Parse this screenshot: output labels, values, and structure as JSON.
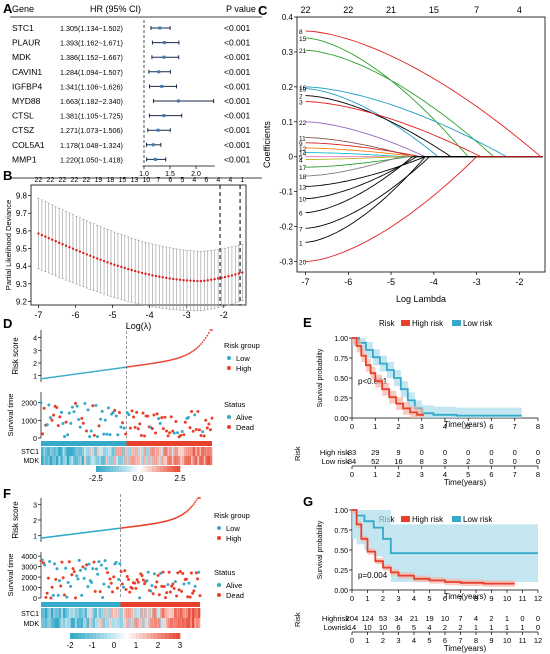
{
  "panels": {
    "A": "A",
    "B": "B",
    "C": "C",
    "D": "D",
    "E": "E",
    "F": "F",
    "G": "G"
  },
  "chart_data": [
    {
      "id": "A",
      "type": "forest",
      "headers": {
        "gene": "Gene",
        "hr": "HR (95% CI)",
        "p": "P value"
      },
      "genes": [
        "STC1",
        "PLAUR",
        "MDK",
        "CAVIN1",
        "IGFBP4",
        "MYD88",
        "CTSL",
        "CTSZ",
        "COL5A1",
        "MMP1"
      ],
      "hr_text": [
        "1.305(1.134~1.502)",
        "1.393(1.162~1.671)",
        "1.386(1.152~1.667)",
        "1.284(1.094~1.507)",
        "1.341(1.106~1.626)",
        "1.663(1.182~2.340)",
        "1.381(1.105~1.725)",
        "1.271(1.073~1.506)",
        "1.178(1.048~1.324)",
        "1.220(1.050~1.418)"
      ],
      "hr": [
        1.305,
        1.393,
        1.386,
        1.284,
        1.341,
        1.663,
        1.381,
        1.271,
        1.178,
        1.22
      ],
      "lo": [
        1.134,
        1.162,
        1.152,
        1.094,
        1.106,
        1.182,
        1.105,
        1.073,
        1.048,
        1.05
      ],
      "hi": [
        1.502,
        1.671,
        1.667,
        1.507,
        1.626,
        2.34,
        1.725,
        1.506,
        1.324,
        1.418
      ],
      "p": [
        "<0.001",
        "<0.001",
        "<0.001",
        "<0.001",
        "<0.001",
        "<0.001",
        "<0.001",
        "<0.001",
        "<0.001",
        "<0.001"
      ],
      "xticks": [
        "1.0",
        "1.5",
        "2.0"
      ],
      "ref_line": 1.0
    },
    {
      "id": "B",
      "type": "line",
      "ylabel": "Partial Likelihood Deviance",
      "xlabel": "Log(λ)",
      "xlim": [
        -7.2,
        -1.4
      ],
      "ylim": [
        9.18,
        9.86
      ],
      "xticks": [
        -7,
        -6,
        -5,
        -4,
        -3,
        -2
      ],
      "yticks": [
        9.2,
        9.3,
        9.4,
        9.5,
        9.6,
        9.7,
        9.8
      ],
      "top_labels": [
        "22",
        "22",
        "22",
        "22",
        "22",
        "19",
        "18",
        "15",
        "13",
        "10",
        "7",
        "6",
        "5",
        "4",
        "6",
        "4",
        "4",
        "1"
      ],
      "vlines": [
        -2.1,
        -1.56
      ]
    },
    {
      "id": "C",
      "type": "line",
      "ylabel": "Coefficients",
      "xlabel": "Log Lambda",
      "xlim": [
        -7.2,
        -1.4
      ],
      "ylim": [
        -0.33,
        0.4
      ],
      "xticks": [
        -7,
        -6,
        -5,
        -4,
        -3,
        -2
      ],
      "yticks": [
        -0.3,
        -0.2,
        -0.1,
        0,
        0.1,
        0.2,
        0.3,
        0.4
      ],
      "ytick_labels": [
        "-0.3",
        "-0.2",
        "-0.1",
        "0",
        "0.1",
        "0.2",
        "0.3",
        "0.4"
      ],
      "top_labels": [
        "22",
        "22",
        "21",
        "15",
        "7",
        "4"
      ],
      "top_positions": [
        -7,
        -6,
        -5,
        -4,
        -3,
        -2
      ],
      "left_labels": [
        "8",
        "15",
        "21",
        "16",
        "19",
        "2",
        "3",
        "22",
        "11",
        "9",
        "12",
        "14",
        "5",
        "4",
        "17",
        "18",
        "13",
        "10",
        "6",
        "7",
        "1",
        "20"
      ]
    },
    {
      "id": "D",
      "type": "risk_plot",
      "ylabel_top": "Risk score",
      "ylabel_mid": "Survival time",
      "legend_risk_title": "Risk group",
      "legend_risk": [
        "Low",
        "High"
      ],
      "legend_status_title": "Status",
      "legend_status": [
        "Alive",
        "Dead"
      ],
      "risk_yticks": [
        "1",
        "2",
        "3",
        "4"
      ],
      "surv_yticks": [
        "0",
        "1000",
        "2000"
      ],
      "heat_genes": [
        "STC1",
        "MDK"
      ],
      "color_ticks": [
        "-2.5",
        "0.0",
        "2.5"
      ]
    },
    {
      "id": "E",
      "type": "survival",
      "legend_title": "Risk",
      "legend": [
        "High risk",
        "Low risk"
      ],
      "ylabel": "Survival probability",
      "xlabel": "Time(years)",
      "pvalue": "p<0.001",
      "xticks": [
        "0",
        "1",
        "2",
        "3",
        "4",
        "5",
        "6",
        "7",
        "8"
      ],
      "yticks": [
        "0.00",
        "0.25",
        "0.50",
        "0.75",
        "1.00"
      ],
      "risk_table_title": "Risk",
      "risk_rows": [
        {
          "name": "High risk",
          "counts": [
            "83",
            "29",
            "9",
            "0",
            "0",
            "0",
            "0",
            "0",
            "0"
          ]
        },
        {
          "name": "Low risk",
          "counts": [
            "84",
            "52",
            "16",
            "8",
            "3",
            "2",
            "0",
            "0",
            "0"
          ]
        }
      ],
      "table_xticks": [
        "0",
        "1",
        "2",
        "3",
        "4",
        "5",
        "6",
        "7",
        "8"
      ],
      "table_xlabel": "Time(years)"
    },
    {
      "id": "F",
      "type": "risk_plot",
      "ylabel_top": "Risk score",
      "ylabel_mid": "Survival time",
      "legend_risk_title": "Risk group",
      "legend_risk": [
        "Low",
        "High"
      ],
      "legend_status_title": "Status",
      "legend_status": [
        "Alive",
        "Dead"
      ],
      "risk_yticks": [
        "1",
        "2",
        "3"
      ],
      "surv_yticks": [
        "0",
        "1000",
        "2000",
        "3000",
        "4000"
      ],
      "heat_genes": [
        "STC1",
        "MDK"
      ],
      "color_ticks": [
        "-2",
        "-1",
        "0",
        "1",
        "2",
        "3"
      ]
    },
    {
      "id": "G",
      "type": "survival",
      "legend_title": "Risk",
      "legend": [
        "High risk",
        "Low risk"
      ],
      "ylabel": "Survival probability",
      "xlabel": "Time(years)",
      "pvalue": "p=0.004",
      "xticks": [
        "0",
        "1",
        "2",
        "3",
        "4",
        "5",
        "6",
        "7",
        "8",
        "9",
        "10",
        "11",
        "12"
      ],
      "yticks": [
        "0.00",
        "0.25",
        "0.50",
        "0.75",
        "1.00"
      ],
      "risk_table_title": "Risk",
      "risk_rows": [
        {
          "name": "Highrisk",
          "counts": [
            "204",
            "124",
            "53",
            "34",
            "21",
            "19",
            "10",
            "7",
            "4",
            "2",
            "1",
            "0",
            "0"
          ]
        },
        {
          "name": "Lowrisk",
          "counts": [
            "14",
            "10",
            "10",
            "6",
            "5",
            "4",
            "2",
            "2",
            "1",
            "1",
            "1",
            "1",
            "0"
          ]
        }
      ],
      "table_xticks": [
        "0",
        "1",
        "2",
        "3",
        "4",
        "5",
        "6",
        "7",
        "8",
        "9",
        "10",
        "11",
        "12"
      ],
      "table_xlabel": "Time(years)"
    }
  ],
  "colors": {
    "high": "#e8402a",
    "low": "#35a9c9",
    "lowband": "#a9dbe9",
    "highband": "#f6b3a6"
  }
}
